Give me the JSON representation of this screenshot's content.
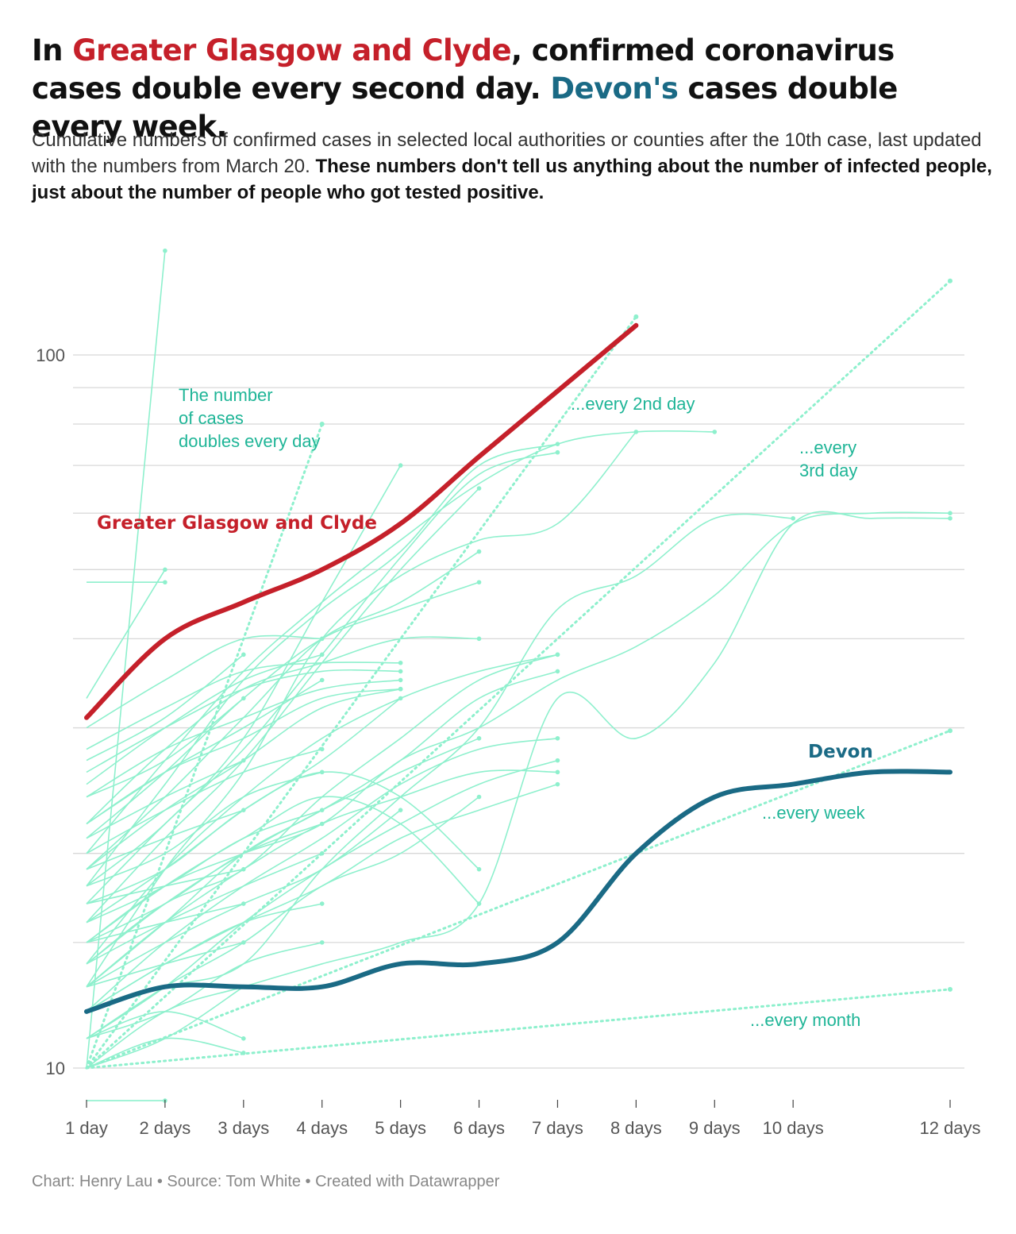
{
  "title": {
    "part1": "In ",
    "highlight1": "Greater Glasgow and Clyde",
    "part2": ", confirmed coronavirus cases double every second day. ",
    "highlight2": "Devon's",
    "part3": " cases double every week."
  },
  "subtitle": {
    "normal": "Cumulative numbers of confirmed cases in selected local authorities or counties after the 10th case, last updated with the numbers from March 20. ",
    "bold": "These numbers don't tell us anything about the number of infected people, just about the number of people who got tested positive."
  },
  "footer": "Chart: Henry Lau • Source: Tom White • Created with Datawrapper",
  "colors": {
    "glasgow": "#c5202a",
    "devon": "#1a6a85",
    "others": "#8ef0cd",
    "annotation": "#1fb597",
    "grid": "#d8d8d8"
  },
  "chart_data": {
    "type": "line",
    "y_scale": "log",
    "xlim": [
      1,
      12
    ],
    "ylim": [
      9,
      150
    ],
    "x_ticks": [
      {
        "value": 1,
        "label": "1 day"
      },
      {
        "value": 2,
        "label": "2 days"
      },
      {
        "value": 3,
        "label": "3 days"
      },
      {
        "value": 4,
        "label": "4 days"
      },
      {
        "value": 5,
        "label": "5 days"
      },
      {
        "value": 6,
        "label": "6 days"
      },
      {
        "value": 7,
        "label": "7 days"
      },
      {
        "value": 8,
        "label": "8 days"
      },
      {
        "value": 9,
        "label": "9 days"
      },
      {
        "value": 10,
        "label": "10 days"
      },
      {
        "value": 12,
        "label": "12 days"
      }
    ],
    "y_ticks": [
      {
        "value": 10,
        "label": "10"
      },
      {
        "value": 100,
        "label": "100"
      }
    ],
    "y_grid": [
      10,
      15,
      20,
      30,
      40,
      50,
      60,
      70,
      80,
      90,
      100
    ],
    "highlight_series": [
      {
        "name": "Greater Glasgow and Clyde",
        "label": "Greater Glasgow and Clyde",
        "color_key": "glasgow",
        "x": [
          1,
          2,
          3,
          4,
          5,
          6,
          7,
          8
        ],
        "y": [
          31,
          40,
          45,
          50,
          58,
          72,
          89,
          110
        ]
      },
      {
        "name": "Devon",
        "label": "Devon",
        "color_key": "devon",
        "x": [
          1,
          2,
          3,
          4,
          5,
          6,
          7,
          8,
          9,
          10,
          11,
          12
        ],
        "y": [
          12,
          13,
          13,
          13,
          14,
          14,
          15,
          20,
          24,
          25,
          26,
          26
        ]
      }
    ],
    "doubling_lines": [
      {
        "label": "The number of cases doubles every day",
        "days": 1,
        "x_end": 4
      },
      {
        "label": "...every 2nd day",
        "days": 2,
        "x_end": 8
      },
      {
        "label": "...every 3rd day",
        "days": 3,
        "x_end": 12
      },
      {
        "label": "...every week",
        "days": 7,
        "x_end": 12
      },
      {
        "label": "...every month",
        "days": 30,
        "x_end": 12
      }
    ],
    "other_series": [
      {
        "x": [
          1,
          2,
          3,
          4,
          5,
          6,
          7
        ],
        "y": [
          12,
          14,
          16,
          18,
          21,
          23,
          25
        ]
      },
      {
        "x": [
          1,
          2,
          3,
          4,
          5,
          6
        ],
        "y": [
          11,
          13,
          15,
          18,
          20,
          24
        ]
      },
      {
        "x": [
          1,
          2,
          3,
          4,
          5
        ],
        "y": [
          13,
          15,
          17,
          19,
          23
        ]
      },
      {
        "x": [
          1,
          2,
          3,
          4
        ],
        "y": [
          15,
          17,
          20,
          22
        ]
      },
      {
        "x": [
          1,
          2,
          3,
          4,
          5,
          6,
          7
        ],
        "y": [
          14,
          17,
          19,
          24,
          29,
          35,
          38
        ]
      },
      {
        "x": [
          1,
          2,
          3,
          4,
          5,
          6,
          7,
          8,
          9,
          10,
          11,
          12
        ],
        "y": [
          15,
          18,
          20,
          22,
          27,
          30,
          35,
          39,
          46,
          58,
          60,
          60
        ]
      },
      {
        "x": [
          1,
          2,
          3,
          4,
          5,
          6,
          7,
          8,
          9,
          10,
          11,
          12
        ],
        "y": [
          10,
          12,
          13,
          14,
          15,
          17,
          33,
          29,
          37,
          58,
          59,
          59
        ]
      },
      {
        "x": [
          1,
          2,
          3,
          4,
          5,
          6,
          7,
          8,
          9,
          10
        ],
        "y": [
          12,
          13,
          14,
          19,
          24,
          30,
          44,
          49,
          59,
          59
        ]
      },
      {
        "x": [
          1,
          2,
          3,
          4,
          5,
          6,
          7,
          8
        ],
        "y": [
          13,
          19,
          26,
          40,
          49,
          55,
          58,
          78
        ]
      },
      {
        "x": [
          1,
          2,
          3,
          4,
          5,
          6,
          7,
          8,
          9
        ],
        "y": [
          20,
          27,
          36,
          45,
          55,
          66,
          75,
          78,
          78
        ]
      },
      {
        "x": [
          1,
          2,
          3,
          4,
          5,
          6,
          7
        ],
        "y": [
          18,
          25,
          35,
          44,
          53,
          70,
          75
        ]
      },
      {
        "x": [
          1,
          2,
          3,
          4,
          5,
          6,
          7
        ],
        "y": [
          17,
          22,
          28,
          38,
          52,
          68,
          73
        ]
      },
      {
        "x": [
          1,
          2,
          3,
          4,
          5,
          6
        ],
        "y": [
          16,
          21,
          27,
          37,
          50,
          65
        ]
      },
      {
        "x": [
          1,
          2,
          3,
          4,
          5,
          6
        ],
        "y": [
          19,
          24,
          31,
          40,
          45,
          53
        ]
      },
      {
        "x": [
          1,
          2,
          3,
          4,
          5,
          6
        ],
        "y": [
          21,
          26,
          33,
          40,
          44,
          48
        ]
      },
      {
        "x": [
          1,
          2,
          3,
          4,
          5,
          6
        ],
        "y": [
          22,
          28,
          34,
          37,
          40,
          40
        ]
      },
      {
        "x": [
          1,
          2,
          3,
          4,
          5
        ],
        "y": [
          18,
          22,
          29,
          45,
          70
        ]
      },
      {
        "x": [
          1,
          2,
          3,
          4,
          5,
          6,
          7
        ],
        "y": [
          14,
          19,
          24,
          29,
          33,
          36,
          38
        ]
      },
      {
        "x": [
          1,
          2,
          3,
          4,
          5,
          6,
          7
        ],
        "y": [
          13,
          16,
          20,
          23,
          27,
          33,
          36
        ]
      },
      {
        "x": [
          1,
          2,
          3,
          4,
          5,
          6,
          7
        ],
        "y": [
          12,
          15,
          18,
          21,
          25,
          28,
          29
        ]
      },
      {
        "x": [
          1,
          2,
          3,
          4,
          5,
          6,
          7
        ],
        "y": [
          11,
          13,
          16,
          19,
          22,
          25,
          27
        ]
      },
      {
        "x": [
          1,
          2,
          3,
          4,
          5,
          6,
          7
        ],
        "y": [
          13,
          16,
          19,
          22,
          24,
          26,
          26
        ]
      },
      {
        "x": [
          1,
          2,
          3,
          4,
          5,
          6
        ],
        "y": [
          15,
          18,
          21,
          24,
          22,
          17
        ]
      },
      {
        "x": [
          1,
          2,
          3,
          4,
          5,
          6
        ],
        "y": [
          17,
          19,
          23,
          26,
          24,
          19
        ]
      },
      {
        "x": [
          1,
          2,
          3,
          4,
          5,
          6
        ],
        "y": [
          14,
          17,
          20,
          23,
          26,
          29
        ]
      },
      {
        "x": [
          1,
          2,
          3,
          4,
          5
        ],
        "y": [
          16,
          19,
          23,
          27,
          33
        ]
      },
      {
        "x": [
          1,
          2,
          3,
          4,
          5
        ],
        "y": [
          19,
          23,
          27,
          32,
          34
        ]
      },
      {
        "x": [
          1,
          2,
          3,
          4,
          5
        ],
        "y": [
          22,
          26,
          29,
          33,
          34
        ]
      },
      {
        "x": [
          1,
          2,
          3,
          4,
          5
        ],
        "y": [
          24,
          28,
          31,
          34,
          35
        ]
      },
      {
        "x": [
          1,
          2,
          3,
          4,
          5
        ],
        "y": [
          26,
          30,
          34,
          36,
          36
        ]
      },
      {
        "x": [
          1,
          2,
          3,
          4,
          5
        ],
        "y": [
          28,
          32,
          36,
          37,
          37
        ]
      },
      {
        "x": [
          1,
          2,
          3,
          4
        ],
        "y": [
          30,
          35,
          40,
          40
        ]
      },
      {
        "x": [
          1,
          2,
          3,
          4
        ],
        "y": [
          25,
          30,
          35,
          38
        ]
      },
      {
        "x": [
          1,
          2,
          3,
          4
        ],
        "y": [
          22,
          26,
          30,
          35
        ]
      },
      {
        "x": [
          1,
          2,
          3,
          4
        ],
        "y": [
          20,
          23,
          26,
          28
        ]
      },
      {
        "x": [
          1,
          2,
          3,
          4
        ],
        "y": [
          18,
          20,
          24,
          26
        ]
      },
      {
        "x": [
          1,
          2,
          3,
          4
        ],
        "y": [
          16,
          18,
          21,
          23
        ]
      },
      {
        "x": [
          1,
          2,
          3,
          4
        ],
        "y": [
          14,
          16,
          18,
          20
        ]
      },
      {
        "x": [
          1,
          2,
          3,
          4
        ],
        "y": [
          12,
          14,
          16,
          17
        ]
      },
      {
        "x": [
          1,
          2,
          3,
          4
        ],
        "y": [
          11,
          12,
          14,
          15
        ]
      },
      {
        "x": [
          1,
          2,
          3
        ],
        "y": [
          10,
          11,
          13
        ]
      },
      {
        "x": [
          1,
          2,
          3
        ],
        "y": [
          10,
          11,
          10.5
        ]
      },
      {
        "x": [
          1,
          2,
          3
        ],
        "y": [
          11,
          12,
          11
        ]
      },
      {
        "x": [
          1,
          2,
          3
        ],
        "y": [
          12,
          13,
          13
        ]
      },
      {
        "x": [
          1,
          2,
          3
        ],
        "y": [
          13,
          14,
          15
        ]
      },
      {
        "x": [
          1,
          2,
          3
        ],
        "y": [
          15,
          16,
          17
        ]
      },
      {
        "x": [
          1,
          2,
          3
        ],
        "y": [
          17,
          18,
          19
        ]
      },
      {
        "x": [
          1,
          2,
          3
        ],
        "y": [
          19,
          21,
          23
        ]
      },
      {
        "x": [
          1,
          2,
          3
        ],
        "y": [
          21,
          24,
          27
        ]
      },
      {
        "x": [
          1,
          2,
          3
        ],
        "y": [
          24,
          27,
          33
        ]
      },
      {
        "x": [
          1,
          2,
          3
        ],
        "y": [
          27,
          31,
          38
        ]
      },
      {
        "x": [
          1,
          2
        ],
        "y": [
          48,
          48
        ]
      },
      {
        "x": [
          1,
          2
        ],
        "y": [
          9,
          9
        ]
      },
      {
        "x": [
          1,
          2
        ],
        "y": [
          33,
          50
        ]
      },
      {
        "x": [
          1,
          2
        ],
        "y": [
          10,
          140
        ]
      }
    ]
  }
}
